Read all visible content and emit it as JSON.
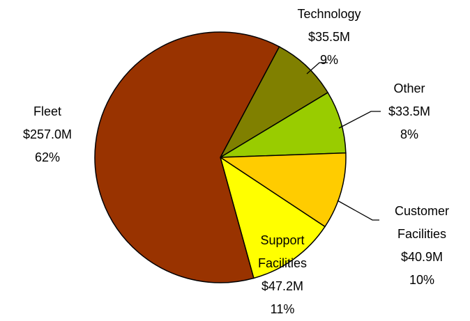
{
  "chart_data": {
    "type": "pie",
    "categories": [
      "Technology",
      "Other",
      "Customer Facilities",
      "Support Facilities",
      "Fleet"
    ],
    "values": [
      35.5,
      33.5,
      40.9,
      47.2,
      257.0
    ],
    "value_labels": [
      "$35.5M",
      "$33.5M",
      "$40.9M",
      "$47.2M",
      "$257.0M"
    ],
    "percents": [
      9,
      8,
      10,
      11,
      62
    ],
    "percent_labels": [
      "9%",
      "8%",
      "10%",
      "11%",
      "62%"
    ],
    "colors": [
      "#808000",
      "#99cc00",
      "#ffcc00",
      "#ffff00",
      "#993300"
    ]
  }
}
